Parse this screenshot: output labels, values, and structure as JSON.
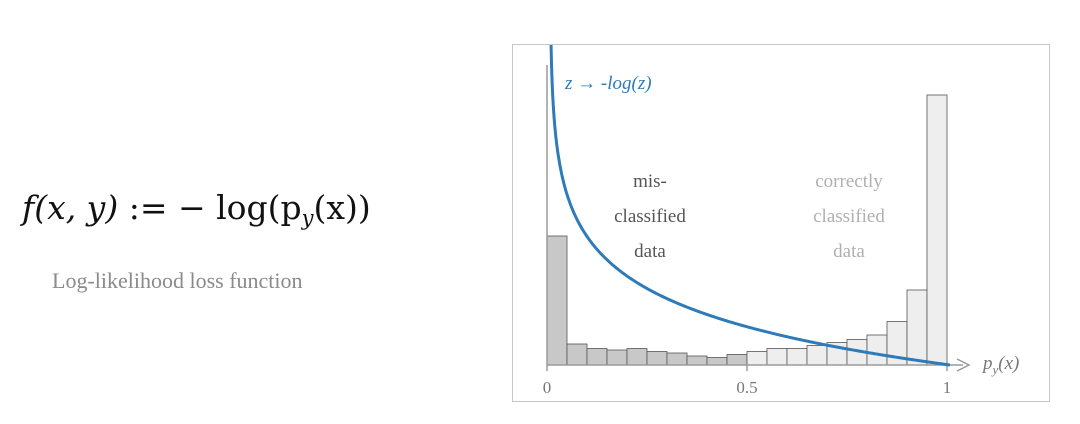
{
  "formula": {
    "lhs": "f(x, y)",
    "op": ":=",
    "rhs_prefix": "− log(p",
    "rhs_sub": "y",
    "rhs_suffix": "(x))"
  },
  "caption": "Log-likelihood loss function",
  "diagram": {
    "curve_label": "z → -log(z)",
    "x_axis_label_main": "p",
    "x_axis_label_sub": "y",
    "x_axis_label_arg": "(x)",
    "x_ticks": [
      "0",
      "0.5",
      "1"
    ],
    "region_left": [
      "mis-",
      "classified",
      "data"
    ],
    "region_right": [
      "correctly",
      "classified",
      "data"
    ],
    "colors": {
      "curve": "#2e7bb8",
      "misclassified_bar": "#c8c8c8",
      "correct_bar": "#eeeeee",
      "bar_stroke": "#555555",
      "axis": "#9a9a9a",
      "text_dark": "#555555",
      "text_light": "#b0b0b0"
    }
  },
  "chart_data": {
    "type": "bar",
    "title": "",
    "xlabel": "p_y(x)",
    "ylabel": "",
    "xlim": [
      0,
      1
    ],
    "bin_width": 0.05,
    "bins": [
      0.025,
      0.075,
      0.125,
      0.175,
      0.225,
      0.275,
      0.325,
      0.375,
      0.425,
      0.475,
      0.525,
      0.575,
      0.625,
      0.675,
      0.725,
      0.775,
      0.825,
      0.875,
      0.925,
      0.975
    ],
    "counts": [
      86,
      14,
      11,
      10,
      11,
      9,
      8,
      6,
      5,
      7,
      9,
      11,
      11,
      13,
      15,
      17,
      20,
      29,
      50,
      180
    ],
    "misclassified_bins_below": 0.5,
    "curve": {
      "function": "-log(z)",
      "name": "z → -log(z)"
    }
  }
}
